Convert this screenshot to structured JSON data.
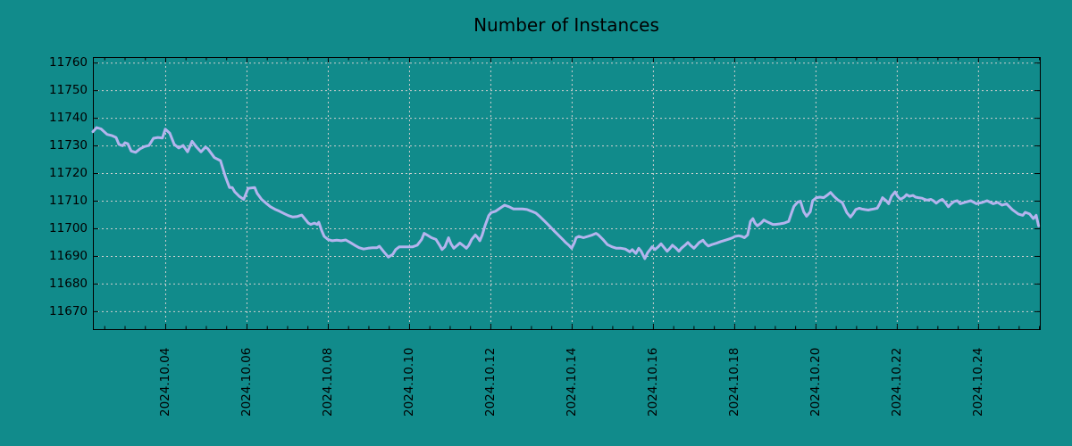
{
  "title": "Number of Instances",
  "colors": {
    "background": "#118b8b",
    "line": "#b4b4ee",
    "grid": "#cfcfcf",
    "axis": "#000000",
    "text": "#000000"
  },
  "chart_data": {
    "type": "line",
    "title": "Number of Instances",
    "xlabel": "",
    "ylabel": "",
    "legend": "none",
    "grid": true,
    "x_unit": "day of October 2024 (fractional)",
    "xlim": [
      2.22,
      25.52
    ],
    "ylim": [
      11663.5,
      11762
    ],
    "y_ticks": [
      11670,
      11680,
      11690,
      11700,
      11710,
      11720,
      11730,
      11740,
      11750,
      11760
    ],
    "x_ticks": [
      {
        "day": 4,
        "label": "2024.10.04"
      },
      {
        "day": 6,
        "label": "2024.10.06"
      },
      {
        "day": 8,
        "label": "2024.10.08"
      },
      {
        "day": 10,
        "label": "2024.10.10"
      },
      {
        "day": 12,
        "label": "2024.10.12"
      },
      {
        "day": 14,
        "label": "2024.10.14"
      },
      {
        "day": 16,
        "label": "2024.10.16"
      },
      {
        "day": 18,
        "label": "2024.10.18"
      },
      {
        "day": 20,
        "label": "2024.10.20"
      },
      {
        "day": 22,
        "label": "2024.10.22"
      },
      {
        "day": 24,
        "label": "2024.10.24"
      }
    ],
    "x_minor_step": 0.5,
    "series": [
      {
        "name": "instances",
        "points": [
          [
            2.22,
            11735.0
          ],
          [
            2.31,
            11736.5
          ],
          [
            2.42,
            11736.0
          ],
          [
            2.57,
            11734.0
          ],
          [
            2.68,
            11733.6
          ],
          [
            2.79,
            11732.9
          ],
          [
            2.86,
            11730.4
          ],
          [
            2.95,
            11729.9
          ],
          [
            3.01,
            11731.0
          ],
          [
            3.08,
            11730.6
          ],
          [
            3.16,
            11728.0
          ],
          [
            3.27,
            11727.5
          ],
          [
            3.38,
            11728.8
          ],
          [
            3.49,
            11729.6
          ],
          [
            3.6,
            11730.0
          ],
          [
            3.71,
            11732.6
          ],
          [
            3.82,
            11732.9
          ],
          [
            3.93,
            11732.7
          ],
          [
            4.0,
            11735.9
          ],
          [
            4.11,
            11734.5
          ],
          [
            4.22,
            11730.4
          ],
          [
            4.33,
            11729.1
          ],
          [
            4.44,
            11730.0
          ],
          [
            4.55,
            11727.7
          ],
          [
            4.66,
            11731.5
          ],
          [
            4.77,
            11729.4
          ],
          [
            4.88,
            11727.7
          ],
          [
            4.99,
            11729.4
          ],
          [
            5.05,
            11728.8
          ],
          [
            5.21,
            11725.6
          ],
          [
            5.36,
            11724.5
          ],
          [
            5.47,
            11719.1
          ],
          [
            5.54,
            11716.4
          ],
          [
            5.58,
            11714.8
          ],
          [
            5.65,
            11714.8
          ],
          [
            5.71,
            11713.2
          ],
          [
            5.82,
            11711.6
          ],
          [
            5.93,
            11710.5
          ],
          [
            6.04,
            11714.5
          ],
          [
            6.2,
            11714.8
          ],
          [
            6.26,
            11712.7
          ],
          [
            6.37,
            11710.5
          ],
          [
            6.48,
            11709.1
          ],
          [
            6.59,
            11707.8
          ],
          [
            6.7,
            11706.9
          ],
          [
            6.81,
            11706.2
          ],
          [
            6.92,
            11705.4
          ],
          [
            7.03,
            11704.6
          ],
          [
            7.14,
            11704.1
          ],
          [
            7.25,
            11704.3
          ],
          [
            7.36,
            11704.8
          ],
          [
            7.45,
            11703.2
          ],
          [
            7.52,
            11701.9
          ],
          [
            7.58,
            11701.4
          ],
          [
            7.67,
            11701.9
          ],
          [
            7.74,
            11701.4
          ],
          [
            7.78,
            11702.2
          ],
          [
            7.85,
            11699.2
          ],
          [
            7.91,
            11697.1
          ],
          [
            8.0,
            11696.0
          ],
          [
            8.11,
            11695.5
          ],
          [
            8.22,
            11695.7
          ],
          [
            8.33,
            11695.5
          ],
          [
            8.44,
            11695.8
          ],
          [
            8.55,
            11694.9
          ],
          [
            8.66,
            11693.9
          ],
          [
            8.77,
            11693.0
          ],
          [
            8.88,
            11692.5
          ],
          [
            8.99,
            11692.8
          ],
          [
            9.1,
            11693.0
          ],
          [
            9.21,
            11693.0
          ],
          [
            9.27,
            11693.5
          ],
          [
            9.38,
            11691.5
          ],
          [
            9.49,
            11689.6
          ],
          [
            9.6,
            11690.6
          ],
          [
            9.67,
            11692.3
          ],
          [
            9.76,
            11693.3
          ],
          [
            9.87,
            11693.3
          ],
          [
            9.98,
            11693.3
          ],
          [
            10.09,
            11693.3
          ],
          [
            10.2,
            11693.9
          ],
          [
            10.31,
            11696.0
          ],
          [
            10.37,
            11698.2
          ],
          [
            10.44,
            11697.6
          ],
          [
            10.55,
            11696.6
          ],
          [
            10.66,
            11696.0
          ],
          [
            10.75,
            11693.9
          ],
          [
            10.81,
            11692.3
          ],
          [
            10.88,
            11693.3
          ],
          [
            10.97,
            11696.6
          ],
          [
            11.03,
            11694.4
          ],
          [
            11.1,
            11692.8
          ],
          [
            11.19,
            11693.9
          ],
          [
            11.25,
            11694.7
          ],
          [
            11.32,
            11693.9
          ],
          [
            11.41,
            11692.8
          ],
          [
            11.47,
            11693.9
          ],
          [
            11.54,
            11696.0
          ],
          [
            11.63,
            11697.6
          ],
          [
            11.69,
            11696.6
          ],
          [
            11.74,
            11695.5
          ],
          [
            11.8,
            11697.6
          ],
          [
            11.87,
            11701.0
          ],
          [
            11.96,
            11704.6
          ],
          [
            12.02,
            11705.7
          ],
          [
            12.13,
            11706.2
          ],
          [
            12.24,
            11707.3
          ],
          [
            12.35,
            11708.4
          ],
          [
            12.46,
            11707.8
          ],
          [
            12.57,
            11707.0
          ],
          [
            12.68,
            11707.0
          ],
          [
            12.79,
            11707.0
          ],
          [
            12.9,
            11706.8
          ],
          [
            13.01,
            11706.2
          ],
          [
            13.12,
            11705.5
          ],
          [
            13.23,
            11704.1
          ],
          [
            13.34,
            11702.5
          ],
          [
            13.45,
            11700.9
          ],
          [
            13.56,
            11699.2
          ],
          [
            13.67,
            11697.6
          ],
          [
            13.78,
            11696.0
          ],
          [
            13.85,
            11694.9
          ],
          [
            13.93,
            11693.9
          ],
          [
            14.0,
            11692.8
          ],
          [
            14.07,
            11694.9
          ],
          [
            14.11,
            11696.6
          ],
          [
            14.18,
            11697.1
          ],
          [
            14.29,
            11696.6
          ],
          [
            14.4,
            11697.1
          ],
          [
            14.51,
            11697.6
          ],
          [
            14.6,
            11698.2
          ],
          [
            14.66,
            11697.6
          ],
          [
            14.77,
            11696.0
          ],
          [
            14.88,
            11694.1
          ],
          [
            14.99,
            11693.3
          ],
          [
            15.1,
            11692.8
          ],
          [
            15.21,
            11692.8
          ],
          [
            15.32,
            11692.5
          ],
          [
            15.43,
            11691.5
          ],
          [
            15.49,
            11692.3
          ],
          [
            15.58,
            11690.9
          ],
          [
            15.65,
            11692.8
          ],
          [
            15.71,
            11691.7
          ],
          [
            15.8,
            11689.0
          ],
          [
            15.87,
            11691.2
          ],
          [
            15.93,
            11692.3
          ],
          [
            15.98,
            11693.3
          ],
          [
            16.05,
            11692.3
          ],
          [
            16.13,
            11693.3
          ],
          [
            16.2,
            11694.4
          ],
          [
            16.26,
            11693.3
          ],
          [
            16.35,
            11691.7
          ],
          [
            16.42,
            11692.8
          ],
          [
            16.48,
            11693.9
          ],
          [
            16.57,
            11692.8
          ],
          [
            16.64,
            11691.7
          ],
          [
            16.7,
            11692.8
          ],
          [
            16.79,
            11693.9
          ],
          [
            16.86,
            11694.9
          ],
          [
            16.92,
            11693.9
          ],
          [
            17.01,
            11692.8
          ],
          [
            17.08,
            11693.9
          ],
          [
            17.14,
            11694.9
          ],
          [
            17.23,
            11695.7
          ],
          [
            17.3,
            11694.4
          ],
          [
            17.36,
            11693.6
          ],
          [
            17.45,
            11694.1
          ],
          [
            17.56,
            11694.6
          ],
          [
            17.67,
            11695.2
          ],
          [
            17.78,
            11695.7
          ],
          [
            17.89,
            11696.2
          ],
          [
            17.96,
            11696.6
          ],
          [
            18.02,
            11697.1
          ],
          [
            18.11,
            11697.3
          ],
          [
            18.18,
            11697.1
          ],
          [
            18.25,
            11696.6
          ],
          [
            18.33,
            11697.6
          ],
          [
            18.4,
            11702.5
          ],
          [
            18.46,
            11703.5
          ],
          [
            18.51,
            11701.9
          ],
          [
            18.57,
            11700.9
          ],
          [
            18.66,
            11701.9
          ],
          [
            18.73,
            11703.0
          ],
          [
            18.79,
            11702.5
          ],
          [
            18.88,
            11701.9
          ],
          [
            18.95,
            11701.4
          ],
          [
            19.01,
            11701.4
          ],
          [
            19.12,
            11701.6
          ],
          [
            19.23,
            11701.9
          ],
          [
            19.34,
            11702.5
          ],
          [
            19.41,
            11705.5
          ],
          [
            19.47,
            11708.0
          ],
          [
            19.56,
            11709.5
          ],
          [
            19.63,
            11709.8
          ],
          [
            19.71,
            11706.0
          ],
          [
            19.78,
            11704.4
          ],
          [
            19.87,
            11706.0
          ],
          [
            19.93,
            11710.0
          ],
          [
            20.02,
            11711.1
          ],
          [
            20.11,
            11711.3
          ],
          [
            20.2,
            11711.1
          ],
          [
            20.29,
            11712.0
          ],
          [
            20.37,
            11713.0
          ],
          [
            20.46,
            11711.5
          ],
          [
            20.55,
            11710.3
          ],
          [
            20.66,
            11709.3
          ],
          [
            20.77,
            11705.7
          ],
          [
            20.86,
            11704.1
          ],
          [
            20.92,
            11705.2
          ],
          [
            20.99,
            11706.8
          ],
          [
            21.08,
            11707.3
          ],
          [
            21.14,
            11707.0
          ],
          [
            21.21,
            11706.8
          ],
          [
            21.3,
            11706.6
          ],
          [
            21.36,
            11706.8
          ],
          [
            21.43,
            11707.0
          ],
          [
            21.52,
            11707.3
          ],
          [
            21.58,
            11708.9
          ],
          [
            21.65,
            11711.1
          ],
          [
            21.74,
            11710.0
          ],
          [
            21.8,
            11708.9
          ],
          [
            21.87,
            11711.6
          ],
          [
            21.96,
            11713.2
          ],
          [
            22.02,
            11711.6
          ],
          [
            22.09,
            11710.5
          ],
          [
            22.18,
            11711.3
          ],
          [
            22.24,
            11712.2
          ],
          [
            22.31,
            11711.6
          ],
          [
            22.4,
            11711.9
          ],
          [
            22.46,
            11711.3
          ],
          [
            22.53,
            11711.1
          ],
          [
            22.62,
            11710.9
          ],
          [
            22.68,
            11710.5
          ],
          [
            22.75,
            11710.2
          ],
          [
            22.84,
            11710.5
          ],
          [
            22.9,
            11710.0
          ],
          [
            22.97,
            11709.1
          ],
          [
            23.05,
            11710.0
          ],
          [
            23.12,
            11710.5
          ],
          [
            23.19,
            11709.4
          ],
          [
            23.27,
            11707.8
          ],
          [
            23.34,
            11708.9
          ],
          [
            23.41,
            11709.7
          ],
          [
            23.49,
            11710.0
          ],
          [
            23.56,
            11708.9
          ],
          [
            23.67,
            11709.4
          ],
          [
            23.82,
            11710.0
          ],
          [
            23.96,
            11708.9
          ],
          [
            24.11,
            11709.4
          ],
          [
            24.22,
            11710.0
          ],
          [
            24.37,
            11708.9
          ],
          [
            24.48,
            11709.4
          ],
          [
            24.59,
            11708.4
          ],
          [
            24.7,
            11708.9
          ],
          [
            24.84,
            11706.8
          ],
          [
            24.99,
            11705.2
          ],
          [
            25.1,
            11704.7
          ],
          [
            25.16,
            11705.8
          ],
          [
            25.27,
            11705.2
          ],
          [
            25.36,
            11703.5
          ],
          [
            25.43,
            11704.7
          ],
          [
            25.49,
            11700.9
          ]
        ]
      }
    ]
  }
}
